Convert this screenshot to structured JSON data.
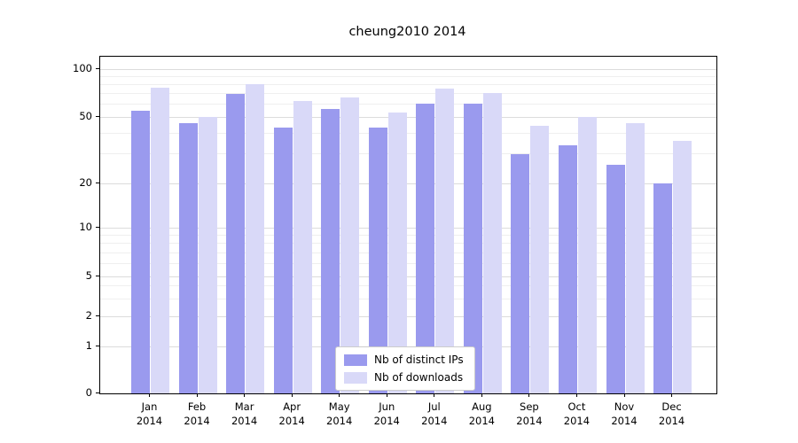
{
  "title": "cheung2010 2014",
  "chart_data": {
    "type": "bar",
    "title": "cheung2010 2014",
    "categories": [
      "Jan 2014",
      "Feb 2014",
      "Mar 2014",
      "Apr 2014",
      "May 2014",
      "Jun 2014",
      "Jul 2014",
      "Aug 2014",
      "Sep 2014",
      "Oct 2014",
      "Nov 2014",
      "Dec 2014"
    ],
    "series": [
      {
        "name": "Nb of distinct IPs",
        "color": "#9a9aee",
        "values": [
          55,
          46,
          70,
          43,
          56,
          43,
          61,
          61,
          30,
          34,
          26,
          20
        ]
      },
      {
        "name": "Nb of downloads",
        "color": "#d9d9f8",
        "values": [
          76,
          50,
          80,
          63,
          66,
          53,
          75,
          71,
          44,
          50,
          46,
          36
        ]
      }
    ],
    "yscale": "symlog",
    "yticks": [
      0,
      1,
      2,
      5,
      10,
      20,
      50,
      100
    ],
    "minor_yticks": [
      3,
      4,
      6,
      7,
      8,
      9,
      30,
      40,
      60,
      70,
      80,
      90
    ],
    "ylim": [
      0,
      100
    ],
    "grid": true,
    "legend_position": "lower center"
  }
}
